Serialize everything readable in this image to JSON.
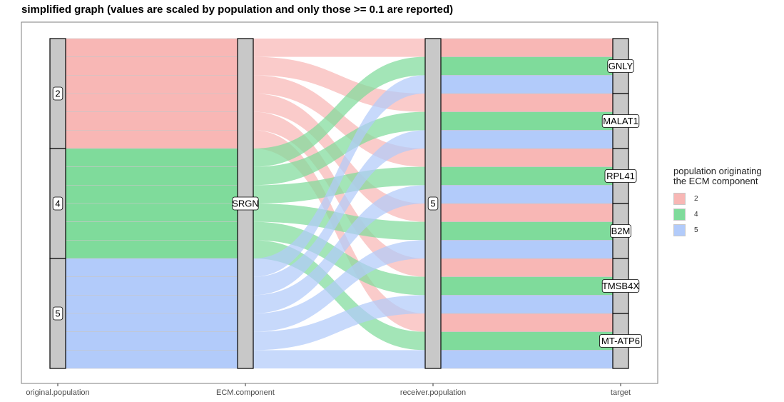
{
  "chart_data": {
    "type": "alluvial",
    "title": "simplified graph (values are scaled by population and only those >= 0.1 are reported)",
    "axes": [
      "original.population",
      "ECM.component",
      "receiver.population",
      "target"
    ],
    "nodes": {
      "original.population": [
        "2",
        "4",
        "5"
      ],
      "ECM.component": [
        "SRGN"
      ],
      "receiver.population": [
        "5"
      ],
      "target": [
        "GNLY",
        "MALAT1",
        "RPL41",
        "B2M",
        "TMSB4X",
        "MT-ATP6"
      ]
    },
    "flows": [
      {
        "fill": "2",
        "target": "GNLY",
        "value": 1
      },
      {
        "fill": "2",
        "target": "MALAT1",
        "value": 1
      },
      {
        "fill": "2",
        "target": "RPL41",
        "value": 1
      },
      {
        "fill": "2",
        "target": "B2M",
        "value": 1
      },
      {
        "fill": "2",
        "target": "TMSB4X",
        "value": 1
      },
      {
        "fill": "2",
        "target": "MT-ATP6",
        "value": 1
      },
      {
        "fill": "4",
        "target": "GNLY",
        "value": 1
      },
      {
        "fill": "4",
        "target": "MALAT1",
        "value": 1
      },
      {
        "fill": "4",
        "target": "RPL41",
        "value": 1
      },
      {
        "fill": "4",
        "target": "B2M",
        "value": 1
      },
      {
        "fill": "4",
        "target": "TMSB4X",
        "value": 1
      },
      {
        "fill": "4",
        "target": "MT-ATP6",
        "value": 1
      },
      {
        "fill": "5",
        "target": "GNLY",
        "value": 1
      },
      {
        "fill": "5",
        "target": "MALAT1",
        "value": 1
      },
      {
        "fill": "5",
        "target": "RPL41",
        "value": 1
      },
      {
        "fill": "5",
        "target": "B2M",
        "value": 1
      },
      {
        "fill": "5",
        "target": "TMSB4X",
        "value": 1
      },
      {
        "fill": "5",
        "target": "MT-ATP6",
        "value": 1
      }
    ],
    "legend": {
      "title": "population originating\nthe ECM component",
      "position": "right",
      "items": [
        {
          "label": "2",
          "color": "#F8B7B5"
        },
        {
          "label": "4",
          "color": "#7FDB9B"
        },
        {
          "label": "5",
          "color": "#B2CBFA"
        }
      ]
    },
    "colors": {
      "2": "#F8766D",
      "4": "#00BA38",
      "5": "#619CFF"
    }
  }
}
